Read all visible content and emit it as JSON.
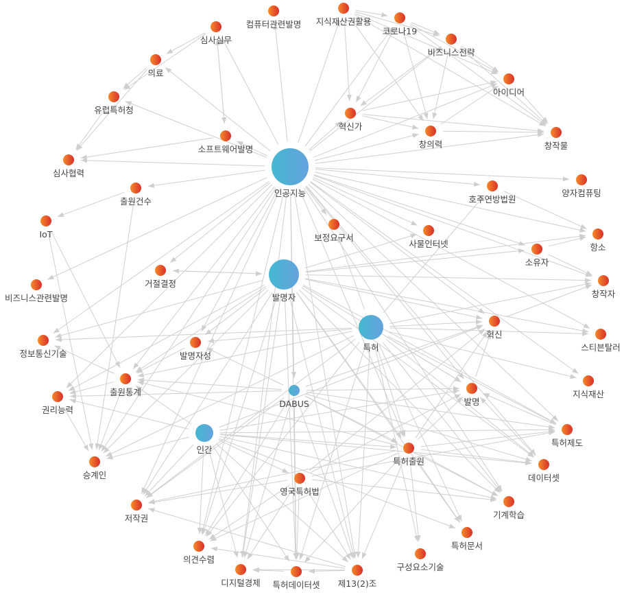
{
  "colors": {
    "topic": [
      "#f58a2a",
      "#d8302a"
    ],
    "hub": [
      "#45b8d0",
      "#64a2dd"
    ],
    "edge": "#cfcfcf",
    "label": "#444444"
  },
  "nodes": [
    {
      "id": "ai",
      "label": "인공지능",
      "type": "hub",
      "size": "xl"
    },
    {
      "id": "inv",
      "label": "발명자",
      "type": "hub",
      "size": "l"
    },
    {
      "id": "pat",
      "label": "특허",
      "type": "hub",
      "size": "m"
    },
    {
      "id": "hum",
      "label": "인간",
      "type": "hub",
      "size": "s"
    },
    {
      "id": "dabus",
      "label": "DABUS",
      "type": "hub",
      "size": "xs"
    },
    {
      "id": "comp",
      "label": "컴퓨터관련발명",
      "type": "topic"
    },
    {
      "id": "ipuse",
      "label": "지식재산권활용",
      "type": "topic"
    },
    {
      "id": "covid",
      "label": "코로나19",
      "type": "topic"
    },
    {
      "id": "exam",
      "label": "심사실무",
      "type": "topic"
    },
    {
      "id": "bizstr",
      "label": "비즈니스전략",
      "type": "topic"
    },
    {
      "id": "med",
      "label": "의료",
      "type": "topic"
    },
    {
      "id": "idea",
      "label": "아이디어",
      "type": "topic"
    },
    {
      "id": "epo",
      "label": "유럽특허청",
      "type": "topic"
    },
    {
      "id": "innovator",
      "label": "혁신가",
      "type": "topic"
    },
    {
      "id": "creativity",
      "label": "창의력",
      "type": "topic"
    },
    {
      "id": "work",
      "label": "창작물",
      "type": "topic"
    },
    {
      "id": "sw",
      "label": "소프트웨어발명",
      "type": "topic"
    },
    {
      "id": "coop",
      "label": "심사협력",
      "type": "topic"
    },
    {
      "id": "quantum",
      "label": "양자컴퓨팅",
      "type": "topic"
    },
    {
      "id": "appcnt",
      "label": "출원건수",
      "type": "topic"
    },
    {
      "id": "aufc",
      "label": "호주연방법원",
      "type": "topic"
    },
    {
      "id": "iot",
      "label": "IoT",
      "type": "topic"
    },
    {
      "id": "amend",
      "label": "보정요구서",
      "type": "topic"
    },
    {
      "id": "iotk",
      "label": "사물인터넷",
      "type": "topic"
    },
    {
      "id": "appeal",
      "label": "항소",
      "type": "topic"
    },
    {
      "id": "owner",
      "label": "소유자",
      "type": "topic"
    },
    {
      "id": "reject",
      "label": "거절결정",
      "type": "topic"
    },
    {
      "id": "creator",
      "label": "창작자",
      "type": "topic"
    },
    {
      "id": "bizinv",
      "label": "비즈니스관련발명",
      "type": "topic"
    },
    {
      "id": "innov",
      "label": "혁신",
      "type": "topic"
    },
    {
      "id": "thaler",
      "label": "스티븐탈러",
      "type": "topic"
    },
    {
      "id": "ict",
      "label": "정보통신기술",
      "type": "topic"
    },
    {
      "id": "inventorship",
      "label": "발명자성",
      "type": "topic"
    },
    {
      "id": "appstat",
      "label": "출원통계",
      "type": "topic"
    },
    {
      "id": "ip",
      "label": "지식재산",
      "type": "topic"
    },
    {
      "id": "invention",
      "label": "발명",
      "type": "topic"
    },
    {
      "id": "capacity",
      "label": "권리능력",
      "type": "topic"
    },
    {
      "id": "patsys",
      "label": "특허제도",
      "type": "topic"
    },
    {
      "id": "patapp",
      "label": "특허출원",
      "type": "topic"
    },
    {
      "id": "dataset",
      "label": "데이터셋",
      "type": "topic"
    },
    {
      "id": "successor",
      "label": "승계인",
      "type": "topic"
    },
    {
      "id": "ukpa",
      "label": "영국특허법",
      "type": "topic"
    },
    {
      "id": "copyright",
      "label": "저작권",
      "type": "topic"
    },
    {
      "id": "ml",
      "label": "기계학습",
      "type": "topic"
    },
    {
      "id": "patdoc",
      "label": "특허문서",
      "type": "topic"
    },
    {
      "id": "consult",
      "label": "의견수렴",
      "type": "topic"
    },
    {
      "id": "comptech",
      "label": "구성요소기술",
      "type": "topic"
    },
    {
      "id": "digecon",
      "label": "디지털경제",
      "type": "topic"
    },
    {
      "id": "patdata",
      "label": "특허데이터셋",
      "type": "topic"
    },
    {
      "id": "s132",
      "label": "제13(2)조",
      "type": "topic"
    }
  ],
  "edges": [
    [
      "ai",
      "comp"
    ],
    [
      "ai",
      "ipuse"
    ],
    [
      "ai",
      "exam"
    ],
    [
      "ai",
      "med"
    ],
    [
      "ai",
      "sw"
    ],
    [
      "ai",
      "coop"
    ],
    [
      "ai",
      "appcnt"
    ],
    [
      "ai",
      "innovator"
    ],
    [
      "ai",
      "creativity"
    ],
    [
      "ai",
      "work"
    ],
    [
      "ai",
      "quantum"
    ],
    [
      "ai",
      "aufc"
    ],
    [
      "ai",
      "appeal"
    ],
    [
      "ai",
      "owner"
    ],
    [
      "ai",
      "creator"
    ],
    [
      "ai",
      "iotk"
    ],
    [
      "ai",
      "amend"
    ],
    [
      "ai",
      "bizinv"
    ],
    [
      "ai",
      "ict"
    ],
    [
      "ai",
      "reject"
    ],
    [
      "ai",
      "innov"
    ],
    [
      "ai",
      "thaler"
    ],
    [
      "ai",
      "ip"
    ],
    [
      "ai",
      "patsys"
    ],
    [
      "ai",
      "dataset"
    ],
    [
      "ai",
      "inventorship"
    ],
    [
      "ai",
      "appstat"
    ],
    [
      "ai",
      "successor"
    ],
    [
      "ai",
      "copyright"
    ],
    [
      "ai",
      "consult"
    ],
    [
      "ai",
      "digecon"
    ],
    [
      "ai",
      "patdata"
    ],
    [
      "ai",
      "patapp"
    ],
    [
      "ai",
      "ml"
    ],
    [
      "ai",
      "invention"
    ],
    [
      "ai",
      "dabus"
    ],
    [
      "ai",
      "covid"
    ],
    [
      "ai",
      "bizstr"
    ],
    [
      "ai",
      "idea"
    ],
    [
      "ai",
      "epo"
    ],
    [
      "ai",
      "capacity"
    ],
    [
      "ai",
      "s132"
    ],
    [
      "inv",
      "reject"
    ],
    [
      "inv",
      "appeal"
    ],
    [
      "inv",
      "owner"
    ],
    [
      "inv",
      "creator"
    ],
    [
      "inv",
      "thaler"
    ],
    [
      "inv",
      "innov"
    ],
    [
      "inv",
      "iotk"
    ],
    [
      "inv",
      "appstat"
    ],
    [
      "inv",
      "capacity"
    ],
    [
      "inv",
      "successor"
    ],
    [
      "inv",
      "copyright"
    ],
    [
      "inv",
      "consult"
    ],
    [
      "inv",
      "digecon"
    ],
    [
      "inv",
      "patdata"
    ],
    [
      "inv",
      "s132"
    ],
    [
      "inv",
      "patapp"
    ],
    [
      "inv",
      "invention"
    ],
    [
      "inv",
      "patsys"
    ],
    [
      "inv",
      "dataset"
    ],
    [
      "inv",
      "ict"
    ],
    [
      "inv",
      "inventorship"
    ],
    [
      "inv",
      "ml"
    ],
    [
      "inv",
      "patdoc"
    ],
    [
      "pat",
      "innov"
    ],
    [
      "pat",
      "ip"
    ],
    [
      "pat",
      "patsys"
    ],
    [
      "pat",
      "dataset"
    ],
    [
      "pat",
      "ml"
    ],
    [
      "pat",
      "patdoc"
    ],
    [
      "pat",
      "comptech"
    ],
    [
      "pat",
      "s132"
    ],
    [
      "pat",
      "patdata"
    ],
    [
      "pat",
      "consult"
    ],
    [
      "pat",
      "copyright"
    ],
    [
      "pat",
      "successor"
    ],
    [
      "pat",
      "appstat"
    ],
    [
      "pat",
      "inventorship"
    ],
    [
      "pat",
      "ict"
    ],
    [
      "pat",
      "amend"
    ],
    [
      "pat",
      "aufc"
    ],
    [
      "pat",
      "invention"
    ],
    [
      "pat",
      "patapp"
    ],
    [
      "pat",
      "thaler"
    ],
    [
      "pat",
      "creator"
    ],
    [
      "dabus",
      "inventorship"
    ],
    [
      "dabus",
      "appstat"
    ],
    [
      "dabus",
      "capacity"
    ],
    [
      "dabus",
      "copyright"
    ],
    [
      "dabus",
      "consult"
    ],
    [
      "dabus",
      "digecon"
    ],
    [
      "dabus",
      "patdata"
    ],
    [
      "dabus",
      "s132"
    ],
    [
      "dabus",
      "patapp"
    ],
    [
      "dabus",
      "invention"
    ],
    [
      "dabus",
      "innov"
    ],
    [
      "dabus",
      "patsys"
    ],
    [
      "dabus",
      "dataset"
    ],
    [
      "dabus",
      "ml"
    ],
    [
      "hum",
      "appstat"
    ],
    [
      "hum",
      "capacity"
    ],
    [
      "hum",
      "successor"
    ],
    [
      "hum",
      "copyright"
    ],
    [
      "hum",
      "consult"
    ],
    [
      "hum",
      "digecon"
    ],
    [
      "hum",
      "s132"
    ],
    [
      "hum",
      "patapp"
    ],
    [
      "hum",
      "patsys"
    ],
    [
      "hum",
      "dataset"
    ],
    [
      "hum",
      "invention"
    ],
    [
      "hum",
      "innov"
    ],
    [
      "hum",
      "ml"
    ],
    [
      "hum",
      "patdoc"
    ],
    [
      "hum",
      "ukpa"
    ],
    [
      "hum",
      "patdata"
    ],
    [
      "patapp",
      "invention"
    ],
    [
      "patapp",
      "innov"
    ],
    [
      "patapp",
      "patsys"
    ],
    [
      "patapp",
      "dataset"
    ],
    [
      "patapp",
      "ml"
    ],
    [
      "patapp",
      "patdoc"
    ],
    [
      "patapp",
      "comptech"
    ],
    [
      "patapp",
      "s132"
    ],
    [
      "patapp",
      "consult"
    ],
    [
      "patapp",
      "copyright"
    ],
    [
      "patapp",
      "appstat"
    ],
    [
      "patapp",
      "patdata"
    ],
    [
      "ukpa",
      "s132"
    ],
    [
      "ukpa",
      "patdata"
    ],
    [
      "ukpa",
      "consult"
    ],
    [
      "ukpa",
      "copyright"
    ],
    [
      "ukpa",
      "invention"
    ],
    [
      "ukpa",
      "innov"
    ],
    [
      "ukpa",
      "patsys"
    ],
    [
      "ukpa",
      "ml"
    ],
    [
      "ukpa",
      "digecon"
    ],
    [
      "ipuse",
      "covid"
    ],
    [
      "ipuse",
      "bizstr"
    ],
    [
      "ipuse",
      "idea"
    ],
    [
      "ipuse",
      "work"
    ],
    [
      "ipuse",
      "innovator"
    ],
    [
      "ipuse",
      "creativity"
    ],
    [
      "covid",
      "bizstr"
    ],
    [
      "covid",
      "idea"
    ],
    [
      "covid",
      "work"
    ],
    [
      "covid",
      "innovator"
    ],
    [
      "covid",
      "creativity"
    ],
    [
      "bizstr",
      "idea"
    ],
    [
      "bizstr",
      "work"
    ],
    [
      "bizstr",
      "innovator"
    ],
    [
      "bizstr",
      "creativity"
    ],
    [
      "innovator",
      "idea"
    ],
    [
      "innovator",
      "work"
    ],
    [
      "innovator",
      "creativity"
    ],
    [
      "creativity",
      "work"
    ],
    [
      "creativity",
      "idea"
    ],
    [
      "idea",
      "work"
    ],
    [
      "exam",
      "med"
    ],
    [
      "exam",
      "epo"
    ],
    [
      "exam",
      "sw"
    ],
    [
      "med",
      "epo"
    ],
    [
      "med",
      "coop"
    ],
    [
      "epo",
      "coop"
    ],
    [
      "sw",
      "coop"
    ],
    [
      "sw",
      "exam"
    ],
    [
      "appcnt",
      "iot"
    ],
    [
      "appcnt",
      "successor"
    ],
    [
      "iot",
      "appstat"
    ],
    [
      "iot",
      "successor"
    ],
    [
      "appstat",
      "capacity"
    ],
    [
      "appstat",
      "successor"
    ],
    [
      "appstat",
      "ict"
    ],
    [
      "capacity",
      "successor"
    ],
    [
      "s132",
      "patdata"
    ],
    [
      "s132",
      "digecon"
    ],
    [
      "s132",
      "consult"
    ],
    [
      "s132",
      "copyright"
    ],
    [
      "patdata",
      "digecon"
    ],
    [
      "aufc",
      "appeal"
    ],
    [
      "owner",
      "creator"
    ],
    [
      "owner",
      "appeal"
    ],
    [
      "innov",
      "creator"
    ],
    [
      "reject",
      "inv"
    ],
    [
      "inventorship",
      "appstat"
    ],
    [
      "invention",
      "innov"
    ],
    [
      "patsys",
      "invention"
    ],
    [
      "dataset",
      "invention"
    ]
  ]
}
